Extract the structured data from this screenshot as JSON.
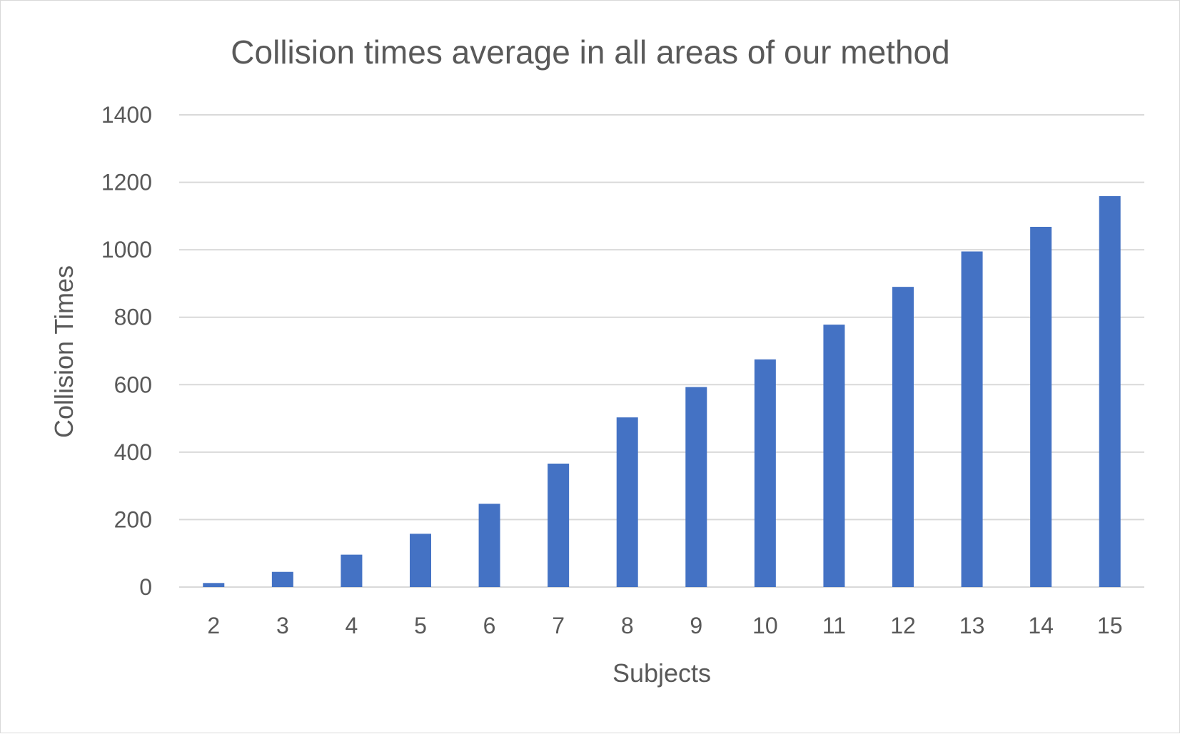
{
  "chart_data": {
    "type": "bar",
    "title": "Collision times average in all areas of our method",
    "xlabel": "Subjects",
    "ylabel": "Collision Times",
    "categories": [
      "2",
      "3",
      "4",
      "5",
      "6",
      "7",
      "8",
      "9",
      "10",
      "11",
      "12",
      "13",
      "14",
      "15"
    ],
    "values": [
      12,
      45,
      96,
      158,
      247,
      366,
      503,
      593,
      675,
      778,
      890,
      995,
      1068,
      1159
    ],
    "ylim": [
      0,
      1400
    ],
    "yticks": [
      "0",
      "200",
      "400",
      "600",
      "800",
      "1000",
      "1200",
      "1400"
    ],
    "grid": true,
    "legend": "none",
    "colors": {
      "bar": "#4472c4",
      "grid": "#d9d9d9",
      "text": "#595959"
    }
  }
}
